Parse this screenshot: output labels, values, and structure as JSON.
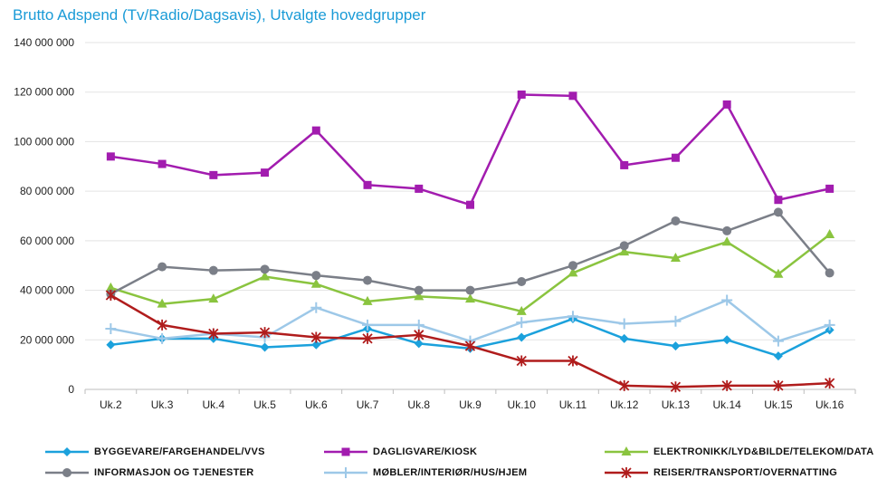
{
  "chart_data": {
    "type": "line",
    "title": "Brutto Adspend (Tv/Radio/Dagsavis), Utvalgte hovedgrupper",
    "xlabel": "",
    "ylabel": "",
    "categories": [
      "Uk.2",
      "Uk.3",
      "Uk.4",
      "Uk.5",
      "Uk.6",
      "Uk.7",
      "Uk.8",
      "Uk.9",
      "Uk.10",
      "Uk.11",
      "Uk.12",
      "Uk.13",
      "Uk.14",
      "Uk.15",
      "Uk.16"
    ],
    "ylim": [
      0,
      140000000
    ],
    "yticks": [
      0,
      20000000,
      40000000,
      60000000,
      80000000,
      100000000,
      120000000,
      140000000
    ],
    "ytick_labels": [
      "0",
      "20 000 000",
      "40 000 000",
      "60 000 000",
      "80 000 000",
      "100 000 000",
      "120 000 000",
      "140 000 000"
    ],
    "grid": true,
    "legend_position": "bottom",
    "series": [
      {
        "name": "BYGGEVARE/FARGEHANDEL/VVS",
        "color": "#1ba1dc",
        "marker": "diamond",
        "values": [
          18000000,
          20500000,
          20500000,
          17000000,
          18000000,
          24500000,
          18500000,
          16500000,
          21000000,
          28500000,
          20500000,
          17500000,
          20000000,
          13500000,
          24000000
        ]
      },
      {
        "name": "DAGLIGVARE/KIOSK",
        "color": "#a21caf",
        "marker": "square",
        "values": [
          94000000,
          91000000,
          86500000,
          87500000,
          104500000,
          82500000,
          81000000,
          74500000,
          119000000,
          118500000,
          90500000,
          93500000,
          115000000,
          76500000,
          81000000
        ]
      },
      {
        "name": "ELEKTRONIKK/LYD&BILDE/TELEKOM/DATA",
        "color": "#8ac43f",
        "marker": "triangle",
        "values": [
          41000000,
          34500000,
          36500000,
          45500000,
          42500000,
          35500000,
          37500000,
          36500000,
          31500000,
          47000000,
          55500000,
          53000000,
          59500000,
          46500000,
          62500000
        ]
      },
      {
        "name": "INFORMASJON OG TJENESTER",
        "color": "#7b7f88",
        "marker": "circle",
        "values": [
          38500000,
          49500000,
          48000000,
          48500000,
          46000000,
          44000000,
          40000000,
          40000000,
          43500000,
          50000000,
          58000000,
          68000000,
          64000000,
          71500000,
          47000000
        ]
      },
      {
        "name": "MØBLER/INTERIØR/HUS/HJEM",
        "color": "#9dc8e8",
        "marker": "plus",
        "values": [
          24500000,
          20500000,
          22500000,
          21000000,
          33000000,
          26000000,
          26000000,
          19500000,
          27000000,
          29500000,
          26500000,
          27500000,
          36000000,
          19500000,
          26000000
        ]
      },
      {
        "name": "REISER/TRANSPORT/OVERNATTING",
        "color": "#b01c1c",
        "marker": "star",
        "values": [
          38000000,
          26000000,
          22500000,
          23000000,
          21000000,
          20500000,
          22000000,
          17500000,
          11500000,
          11500000,
          1500000,
          1000000,
          1500000,
          1500000,
          2500000
        ]
      }
    ]
  }
}
